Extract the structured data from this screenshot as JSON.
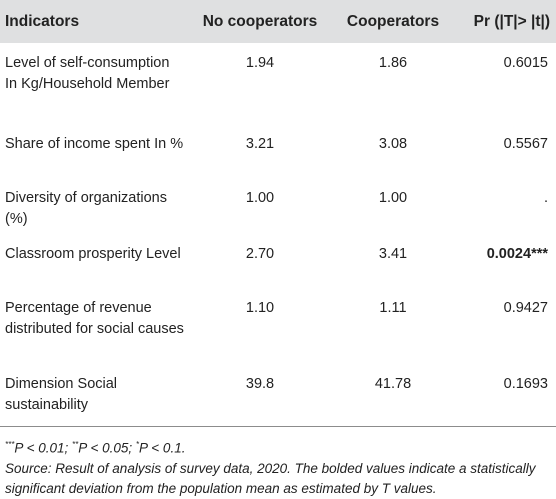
{
  "table": {
    "headers": [
      "Indicators",
      "No cooperators",
      "Cooperators",
      "Pr (|T|> |t|)"
    ],
    "rows": [
      {
        "indicator": "Level of self-consumption In Kg/Household Member",
        "no_coop": "1.94",
        "coop": "1.86",
        "pr": "0.6015",
        "pr_suffix": ""
      },
      {
        "indicator": "Share of income spent In %",
        "no_coop": "3.21",
        "coop": "3.08",
        "pr": "0.5567",
        "pr_suffix": ""
      },
      {
        "indicator": "Diversity of organizations (%)",
        "no_coop": "1.00",
        "coop": "1.00",
        "pr": ".",
        "pr_suffix": ""
      },
      {
        "indicator": "Classroom prosperity Level",
        "no_coop": "2.70",
        "coop": "3.41",
        "pr": "0.0024",
        "pr_suffix": "***"
      },
      {
        "indicator": "Percentage of revenue distributed for social causes",
        "no_coop": "1.10",
        "coop": "1.11",
        "pr": "0.9427",
        "pr_suffix": ""
      },
      {
        "indicator": "Dimension Social sustainability",
        "no_coop": "39.8",
        "coop": "41.78",
        "pr": "0.1693",
        "pr_suffix": ""
      }
    ]
  },
  "footnotes": {
    "sig_stars_1": "***",
    "sig_text_1": "P < 0.01; ",
    "sig_stars_2": "**",
    "sig_text_2": "P < 0.05; ",
    "sig_stars_3": "*",
    "sig_text_3": "P < 0.1.",
    "source": "Source: Result of analysis of survey data, 2020. The bolded values indicate a statistically significant deviation from the population mean as estimated by T values."
  }
}
